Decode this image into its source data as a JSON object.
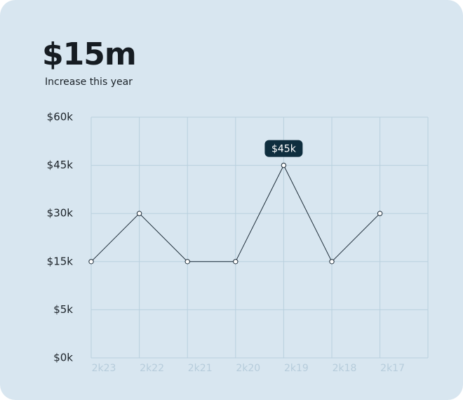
{
  "chart_data": {
    "type": "line",
    "title": "$15m",
    "subtitle": "Increase this year",
    "categories": [
      "2k23",
      "2k22",
      "2k21",
      "2k20",
      "2k19",
      "2k18",
      "2k17"
    ],
    "values": [
      15000,
      30000,
      15000,
      15000,
      45000,
      15000,
      30000
    ],
    "value_labels": [
      null,
      null,
      null,
      null,
      "$45k",
      null,
      null
    ],
    "color": "#1b2a36",
    "ylim": [
      0,
      60000
    ],
    "yticks": [
      {
        "value": 0,
        "label": "$0k"
      },
      {
        "value": 5000,
        "label": "$5k"
      },
      {
        "value": 15000,
        "label": "$15k"
      },
      {
        "value": 30000,
        "label": "$30k"
      },
      {
        "value": 45000,
        "label": "$45k"
      },
      {
        "value": 60000,
        "label": "$60k"
      }
    ],
    "grid": true
  }
}
